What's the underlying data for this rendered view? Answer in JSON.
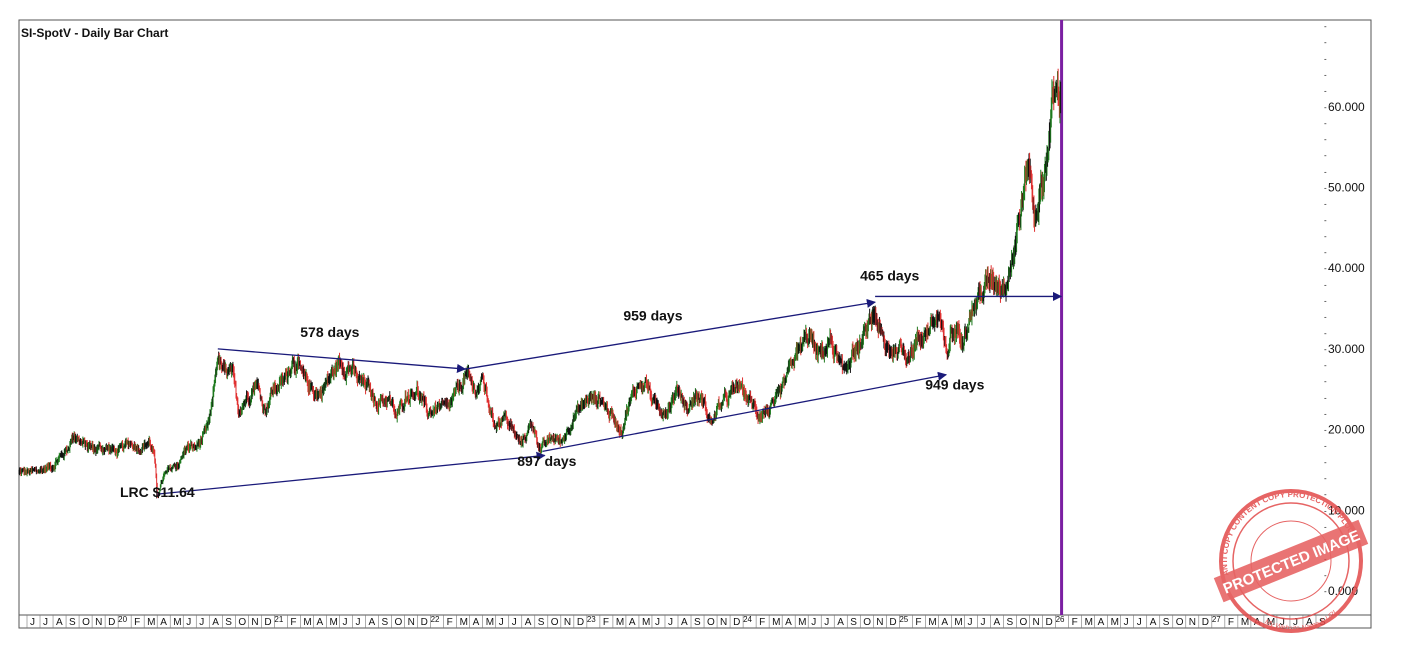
{
  "chart_data": {
    "type": "bar",
    "title": "SI-SpotV - Daily Bar Chart",
    "xlabel": "",
    "ylabel": "",
    "ylim": [
      -2,
      71
    ],
    "y_ticks": [
      "60.000",
      "50.000",
      "40.000",
      "30.000",
      "20.000",
      "10.000",
      "0.000"
    ],
    "y_tick_values": [
      60,
      50,
      40,
      30,
      20,
      10,
      0
    ],
    "x_month_labels": [
      "J",
      "J",
      "A",
      "S",
      "O",
      "N",
      "D",
      "20",
      "F",
      "M",
      "A",
      "M",
      "J",
      "J",
      "A",
      "S",
      "O",
      "N",
      "D",
      "21",
      "F",
      "M",
      "A",
      "M",
      "J",
      "J",
      "A",
      "S",
      "O",
      "N",
      "D",
      "22",
      "F",
      "M",
      "A",
      "M",
      "J",
      "J",
      "A",
      "S",
      "O",
      "N",
      "D",
      "23",
      "F",
      "M",
      "A",
      "M",
      "J",
      "J",
      "A",
      "S",
      "O",
      "N",
      "D",
      "24",
      "F",
      "M",
      "A",
      "M",
      "J",
      "J",
      "A",
      "S",
      "O",
      "N",
      "D",
      "25",
      "F",
      "M",
      "A",
      "M",
      "J",
      "J",
      "A",
      "S",
      "O",
      "N",
      "D",
      "26",
      "F",
      "M",
      "A",
      "M",
      "J",
      "J",
      "A",
      "S",
      "O",
      "N",
      "D",
      "27",
      "F",
      "M",
      "A",
      "M",
      "J",
      "J",
      "A",
      "S"
    ],
    "x_range": [
      "2019-06",
      "2027-09"
    ],
    "last_bar_date": "2025-12-31",
    "vertical_marker": {
      "date": "2026-01-01",
      "color": "#7b1fa2"
    },
    "series": [
      {
        "color_up": "#1e7a1e",
        "color_down": "#e03030",
        "color_neutral": "#111111",
        "anchors": [
          [
            "2019-06-01",
            14.7
          ],
          [
            "2019-06-20",
            15.0
          ],
          [
            "2019-07-15",
            15.5
          ],
          [
            "2019-08-20",
            17.5
          ],
          [
            "2019-09-05",
            19.5
          ],
          [
            "2019-09-25",
            18.2
          ],
          [
            "2019-10-25",
            17.6
          ],
          [
            "2019-11-15",
            17.8
          ],
          [
            "2019-12-20",
            17.2
          ],
          [
            "2020-01-15",
            18.4
          ],
          [
            "2020-02-10",
            17.8
          ],
          [
            "2020-02-28",
            18.5
          ],
          [
            "2020-03-10",
            17.0
          ],
          [
            "2020-03-18",
            11.8
          ],
          [
            "2020-04-01",
            14.0
          ],
          [
            "2020-04-20",
            15.2
          ],
          [
            "2020-05-10",
            16.0
          ],
          [
            "2020-05-25",
            17.8
          ],
          [
            "2020-06-15",
            17.7
          ],
          [
            "2020-07-10",
            19.5
          ],
          [
            "2020-07-22",
            22.0
          ],
          [
            "2020-08-06",
            29.0
          ],
          [
            "2020-08-20",
            27.0
          ],
          [
            "2020-09-10",
            26.8
          ],
          [
            "2020-09-24",
            22.5
          ],
          [
            "2020-10-20",
            24.5
          ],
          [
            "2020-11-05",
            26.0
          ],
          [
            "2020-11-25",
            22.5
          ],
          [
            "2020-12-15",
            25.0
          ],
          [
            "2021-01-10",
            26.0
          ],
          [
            "2021-02-01",
            29.0
          ],
          [
            "2021-02-25",
            26.0
          ],
          [
            "2021-03-30",
            24.3
          ],
          [
            "2021-04-20",
            26.0
          ],
          [
            "2021-05-18",
            28.3
          ],
          [
            "2021-06-15",
            27.5
          ],
          [
            "2021-07-01",
            26.0
          ],
          [
            "2021-07-20",
            25.5
          ],
          [
            "2021-08-10",
            23.5
          ],
          [
            "2021-09-10",
            23.8
          ],
          [
            "2021-09-29",
            21.5
          ],
          [
            "2021-10-20",
            24.2
          ],
          [
            "2021-11-15",
            25.0
          ],
          [
            "2021-12-10",
            22.0
          ],
          [
            "2022-01-05",
            22.8
          ],
          [
            "2022-01-28",
            22.5
          ],
          [
            "2022-02-25",
            25.5
          ],
          [
            "2022-03-08",
            26.8
          ],
          [
            "2022-03-30",
            24.8
          ],
          [
            "2022-04-18",
            26.0
          ],
          [
            "2022-05-13",
            20.8
          ],
          [
            "2022-06-10",
            21.5
          ],
          [
            "2022-07-14",
            18.2
          ],
          [
            "2022-08-12",
            20.8
          ],
          [
            "2022-09-01",
            17.5
          ],
          [
            "2022-09-28",
            19.0
          ],
          [
            "2022-10-20",
            18.5
          ],
          [
            "2022-11-15",
            21.5
          ],
          [
            "2022-12-20",
            23.8
          ],
          [
            "2023-01-20",
            23.8
          ],
          [
            "2023-02-10",
            22.0
          ],
          [
            "2023-03-08",
            20.0
          ],
          [
            "2023-03-20",
            22.5
          ],
          [
            "2023-04-14",
            25.5
          ],
          [
            "2023-05-05",
            25.8
          ],
          [
            "2023-05-25",
            22.8
          ],
          [
            "2023-06-20",
            22.5
          ],
          [
            "2023-07-20",
            25.0
          ],
          [
            "2023-08-10",
            22.5
          ],
          [
            "2023-08-28",
            24.2
          ],
          [
            "2023-09-15",
            23.5
          ],
          [
            "2023-10-03",
            20.8
          ],
          [
            "2023-10-25",
            23.0
          ],
          [
            "2023-11-28",
            24.8
          ],
          [
            "2023-12-05",
            25.5
          ],
          [
            "2023-12-28",
            24.0
          ],
          [
            "2024-01-22",
            22.0
          ],
          [
            "2024-02-15",
            22.5
          ],
          [
            "2024-02-28",
            22.8
          ],
          [
            "2024-03-20",
            25.0
          ],
          [
            "2024-04-12",
            28.5
          ],
          [
            "2024-05-20",
            31.8
          ],
          [
            "2024-06-10",
            29.0
          ],
          [
            "2024-07-10",
            31.0
          ],
          [
            "2024-08-07",
            26.8
          ],
          [
            "2024-08-28",
            29.5
          ],
          [
            "2024-09-15",
            30.0
          ],
          [
            "2024-10-22",
            34.5
          ],
          [
            "2024-11-14",
            29.8
          ],
          [
            "2024-12-15",
            30.0
          ],
          [
            "2025-01-10",
            29.5
          ],
          [
            "2025-01-30",
            31.0
          ],
          [
            "2025-03-20",
            34.0
          ],
          [
            "2025-04-07",
            28.5
          ],
          [
            "2025-04-15",
            32.0
          ],
          [
            "2025-05-15",
            32.2
          ],
          [
            "2025-06-05",
            34.8
          ],
          [
            "2025-06-20",
            36.5
          ],
          [
            "2025-07-22",
            38.8
          ],
          [
            "2025-08-20",
            38.0
          ],
          [
            "2025-09-10",
            42.0
          ],
          [
            "2025-10-17",
            53.5
          ],
          [
            "2025-10-28",
            46.5
          ],
          [
            "2025-11-20",
            51.0
          ],
          [
            "2025-12-12",
            61.0
          ],
          [
            "2025-12-26",
            61.5
          ]
        ]
      }
    ],
    "annotations": [
      {
        "text": "LRC $11.64",
        "x": "2020-03-18",
        "y": 11.64
      },
      {
        "text": "578 days",
        "x": "2021-04-25",
        "y": 31.5
      },
      {
        "text": "897 days",
        "x": "2022-09-15",
        "y": 15.5
      },
      {
        "text": "959 days",
        "x": "2023-05-20",
        "y": 33.5
      },
      {
        "text": "949 days",
        "x": "2025-04-25",
        "y": 25.0
      },
      {
        "text": "465 days",
        "x": "2024-11-25",
        "y": 38.5
      }
    ],
    "arrows": [
      {
        "from": [
          "2020-03-18",
          12.0
        ],
        "to": [
          "2022-09-10",
          16.8
        ]
      },
      {
        "from": [
          "2020-08-07",
          30.0
        ],
        "to": [
          "2022-03-07",
          27.5
        ]
      },
      {
        "from": [
          "2022-03-07",
          27.5
        ],
        "to": [
          "2024-10-22",
          35.8
        ]
      },
      {
        "from": [
          "2022-09-05",
          17.3
        ],
        "to": [
          "2025-04-05",
          26.8
        ]
      },
      {
        "from": [
          "2024-10-22",
          36.5
        ],
        "to": [
          "2025-12-31",
          36.5
        ]
      }
    ],
    "watermark": {
      "text": "PROTECTED IMAGE",
      "ring_text": "ANTI COPY CONTENT COPY PROTECTION PLUGIN",
      "ring_text_bottom": "My Website Name & URL",
      "color": "#e24a4a"
    },
    "colors": {
      "arrow": "#1a1a7a",
      "border": "#555555"
    }
  }
}
